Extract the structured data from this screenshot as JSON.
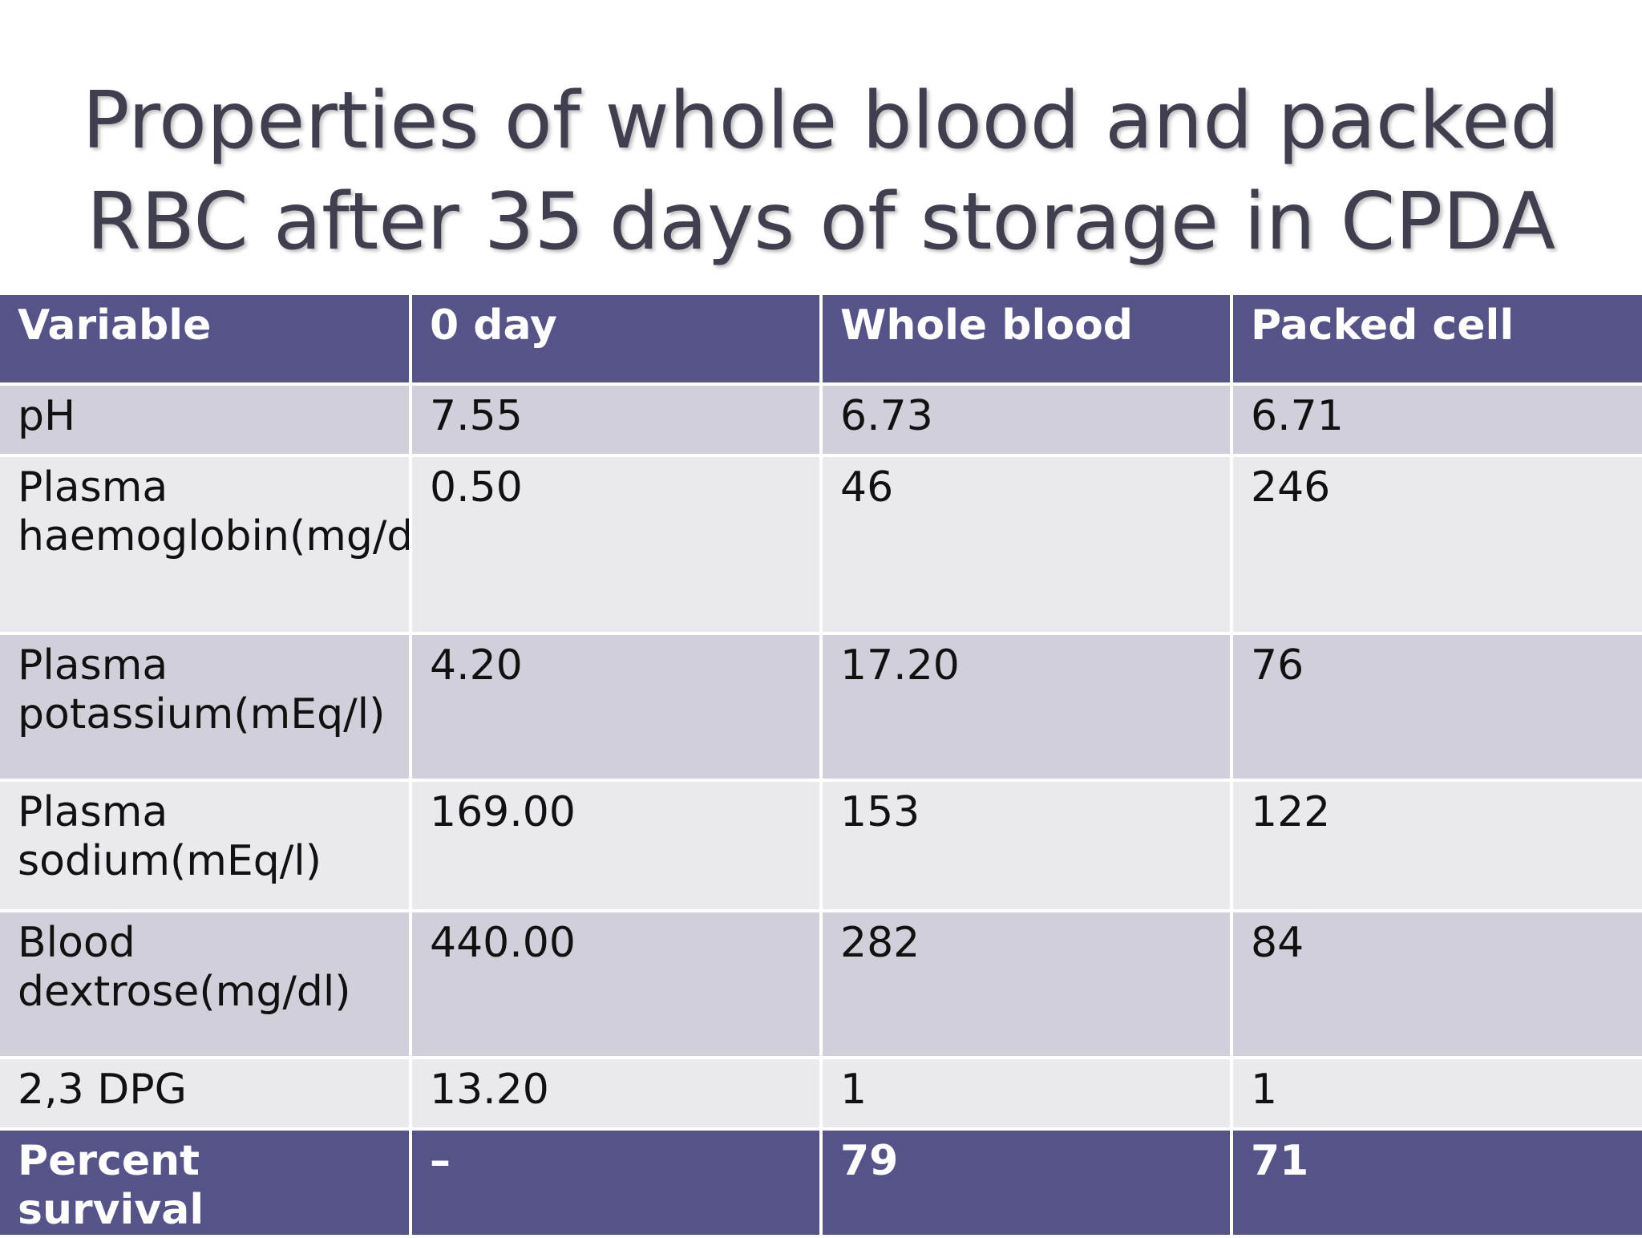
{
  "title": [
    "Properties of whole blood and packed",
    "RBC after 35 days of storage in CPDA"
  ],
  "table": {
    "header": [
      "Variable",
      "0 day",
      "Whole blood",
      "Packed cell"
    ],
    "rows": [
      [
        "pH",
        "7.55",
        "6.73",
        "6.71"
      ],
      [
        "Plasma haemoglobin(mg/dl)",
        "0.50",
        "46",
        "246"
      ],
      [
        "Plasma potassium(mEq/l)",
        "4.20",
        "17.20",
        "76"
      ],
      [
        "Plasma sodium(mEq/l)",
        "169.00",
        "153",
        "122"
      ],
      [
        "Blood dextrose(mg/dl)",
        "440.00",
        "282",
        "84"
      ],
      [
        "2,3 DPG",
        "13.20",
        "1",
        "1"
      ]
    ],
    "footer": [
      "Percent survival",
      "–",
      "79",
      "71"
    ]
  }
}
